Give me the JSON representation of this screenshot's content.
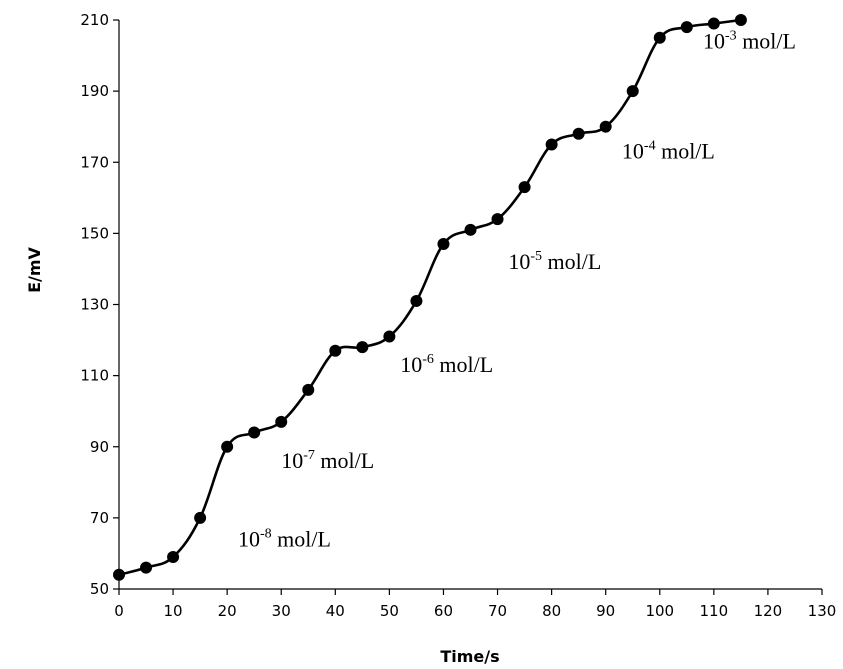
{
  "chart_data": {
    "type": "line",
    "title": "",
    "xlabel": "Time/s",
    "ylabel": "E/mV",
    "xlim": [
      0,
      130
    ],
    "ylim": [
      50,
      210
    ],
    "x_ticks": [
      "0",
      "10",
      "20",
      "30",
      "40",
      "50",
      "60",
      "70",
      "80",
      "90",
      "100",
      "110",
      "120",
      "130"
    ],
    "y_ticks": [
      "50",
      "70",
      "90",
      "110",
      "130",
      "150",
      "170",
      "190",
      "210"
    ],
    "grid": false,
    "legend": "none",
    "series": [
      {
        "color": "#000000",
        "marker": "circle",
        "x": [
          0,
          5,
          10,
          15,
          20,
          25,
          30,
          35,
          40,
          45,
          50,
          55,
          60,
          65,
          70,
          75,
          80,
          85,
          90,
          95,
          100,
          105,
          110,
          115
        ],
        "y": [
          54,
          56,
          59,
          70,
          90,
          94,
          97,
          106,
          117,
          118,
          121,
          131,
          147,
          151,
          154,
          163,
          175,
          178,
          180,
          190,
          205,
          208,
          209,
          210
        ]
      }
    ],
    "annotations": [
      {
        "base": "10",
        "exp": "-8",
        "unit": " mol/L",
        "x": 22,
        "y": 62
      },
      {
        "base": "10",
        "exp": "-7",
        "unit": " mol/L",
        "x": 30,
        "y": 84
      },
      {
        "base": "10",
        "exp": "-6",
        "unit": " mol/L",
        "x": 52,
        "y": 111
      },
      {
        "base": "10",
        "exp": "-5",
        "unit": " mol/L",
        "x": 72,
        "y": 140
      },
      {
        "base": "10",
        "exp": "-4",
        "unit": " mol/L",
        "x": 93,
        "y": 171
      },
      {
        "base": "10",
        "exp": "-3",
        "unit": " mol/L",
        "x": 108,
        "y": 202
      }
    ]
  }
}
